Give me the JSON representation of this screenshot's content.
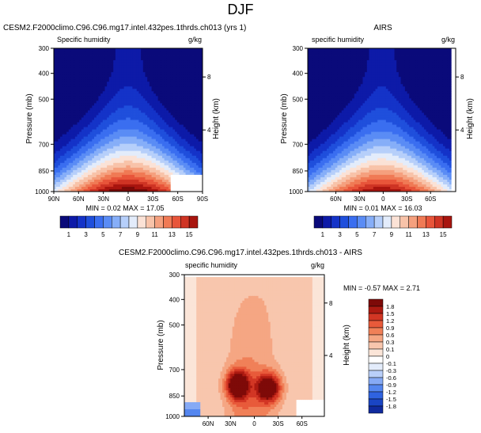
{
  "title": "DJF",
  "palette": {
    "seq": [
      "#0a0a7a",
      "#0d1aa8",
      "#1433c8",
      "#1f4fdc",
      "#3a6ef0",
      "#5a8cf5",
      "#86aef8",
      "#b6cffa",
      "#e3ecfb",
      "#fbe2d6",
      "#f8c3a9",
      "#f5a07e",
      "#f07a55",
      "#e8553a",
      "#cf3424",
      "#a8150f",
      "#7a0a08"
    ],
    "diff": [
      "#0a0a7a",
      "#102a9e",
      "#1a45c4",
      "#2f63e0",
      "#5486ef",
      "#86aaf5",
      "#b9cff9",
      "#e3ecfb",
      "#ffffff",
      "#fbe5d8",
      "#f8c6ad",
      "#f5a683",
      "#f08058",
      "#e85a3a",
      "#d23624",
      "#ad1a11",
      "#7e0a08"
    ]
  },
  "panels": {
    "model": {
      "run_label": "CESM2.F2000climo.C96.C96.mg17.intel.432pes.1thrds.ch013 (yrs 1)",
      "left_label": "Specific humidity",
      "units": "g/kg",
      "stats": "MIN =  0.02  MAX =  17.05",
      "max_value": 17.05,
      "min_value": 0.02
    },
    "obs": {
      "run_label": "AIRS",
      "left_label": "specific humidity",
      "units": "g/kg",
      "stats": "MIN =  0.01  MAX =  16.03",
      "max_value": 16.03,
      "min_value": 0.01
    },
    "diff": {
      "run_label": "CESM2.F2000climo.C96.C96.mg17.intel.432pes.1thrds.ch013 - AIRS",
      "left_label": "specific humidity",
      "units": "g/kg",
      "stats": "MIN = -0.57  MAX =   2.71"
    }
  },
  "axes": {
    "ylabel": "Pressure (mb)",
    "ylabel_right": "Height (km)",
    "pressure_ticks": [
      "300",
      "400",
      "500",
      "700",
      "850",
      "1000"
    ],
    "height_ticks": [
      "8",
      "4"
    ],
    "lat_ticks_top": [
      "90N",
      "60N",
      "30N",
      "0",
      "30S",
      "60S",
      "90S"
    ],
    "lat_ticks_obs": [
      "60N",
      "30N",
      "0",
      "30S",
      "60S"
    ],
    "lat_ticks_diff": [
      "60N",
      "30N",
      "0",
      "30S",
      "60S"
    ]
  },
  "colorbar_seq": {
    "labels": [
      "1",
      "3",
      "5",
      "7",
      "9",
      "11",
      "13",
      "15"
    ]
  },
  "colorbar_diff": {
    "labels": [
      "1.8",
      "1.5",
      "1.2",
      "0.9",
      "0.6",
      "0.3",
      "0.1",
      "0",
      "-0.1",
      "-0.3",
      "-0.6",
      "-0.9",
      "-1.2",
      "-1.5",
      "-1.8"
    ]
  },
  "chart_data": [
    {
      "type": "heatmap",
      "title": "CESM2.F2000climo.C96.C96.mg17.intel.432pes.1thrds.ch013 (yrs 1)",
      "xlabel": "",
      "ylabel": "Pressure (mb)",
      "x_ticks": [
        "90N",
        "60N",
        "30N",
        "0",
        "30S",
        "60S",
        "90S"
      ],
      "y_ticks": [
        300,
        400,
        500,
        700,
        850,
        1000
      ],
      "ylim": [
        1000,
        300
      ],
      "min": 0.02,
      "max": 17.05,
      "units": "g/kg"
    },
    {
      "type": "heatmap",
      "title": "AIRS",
      "xlabel": "",
      "ylabel": "Pressure (mb)",
      "x_ticks": [
        "60N",
        "30N",
        "0",
        "30S",
        "60S"
      ],
      "y_ticks": [
        300,
        400,
        500,
        700,
        850,
        1000
      ],
      "ylim": [
        1000,
        300
      ],
      "min": 0.01,
      "max": 16.03,
      "units": "g/kg"
    },
    {
      "type": "heatmap",
      "title": "CESM2.F2000climo.C96.C96.mg17.intel.432pes.1thrds.ch013 - AIRS",
      "xlabel": "",
      "ylabel": "Pressure (mb)",
      "x_ticks": [
        "60N",
        "30N",
        "0",
        "30S",
        "60S"
      ],
      "y_ticks": [
        300,
        400,
        500,
        700,
        850,
        1000
      ],
      "ylim": [
        1000,
        300
      ],
      "min": -0.57,
      "max": 2.71,
      "units": "g/kg"
    }
  ]
}
